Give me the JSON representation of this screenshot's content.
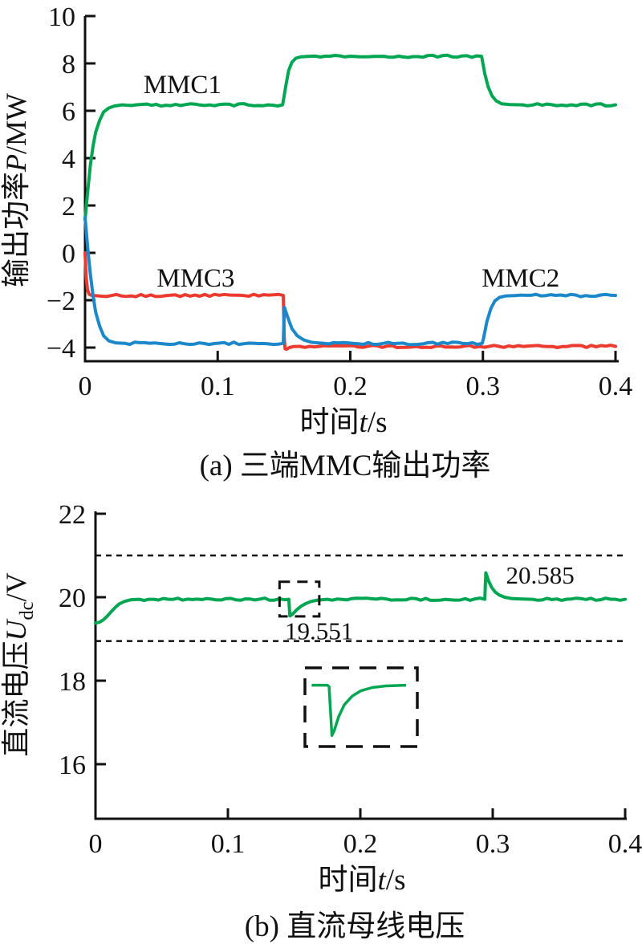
{
  "figure": {
    "background": "#ffffff",
    "text_color": "#111111"
  },
  "chart_data": [
    {
      "type": "line",
      "caption": "(a) 三端MMC输出功率",
      "xlabel_parts": [
        {
          "text": "时间"
        },
        {
          "text": "t",
          "italic": true
        },
        {
          "text": "/s"
        }
      ],
      "ylabel_parts": [
        {
          "text": "输出功率"
        },
        {
          "text": "P",
          "italic": true
        },
        {
          "text": "/MW"
        }
      ],
      "xlim": [
        0,
        0.4
      ],
      "ylim": [
        -4,
        10
      ],
      "grid": false,
      "x_ticks": [
        {
          "v": 0,
          "label": "0"
        },
        {
          "v": 0.1,
          "label": "0.1"
        },
        {
          "v": 0.2,
          "label": "0.2"
        },
        {
          "v": 0.3,
          "label": "0.3"
        },
        {
          "v": 0.4,
          "label": "0.4"
        }
      ],
      "y_ticks": [
        {
          "v": 10,
          "label": "10"
        },
        {
          "v": 8,
          "label": "8"
        },
        {
          "v": 6,
          "label": "6"
        },
        {
          "v": 4,
          "label": "4"
        },
        {
          "v": 2,
          "label": "2"
        },
        {
          "v": 0,
          "label": "0"
        },
        {
          "v": -2,
          "label": "−2"
        },
        {
          "v": -4,
          "label": "−4"
        }
      ],
      "series": [
        {
          "name": "MMC1",
          "color": "#00a651",
          "points": [
            [
              0,
              1.4
            ],
            [
              0.002,
              2.6
            ],
            [
              0.004,
              3.7
            ],
            [
              0.006,
              4.5
            ],
            [
              0.008,
              5.1
            ],
            [
              0.011,
              5.6
            ],
            [
              0.014,
              5.95
            ],
            [
              0.018,
              6.12
            ],
            [
              0.022,
              6.2
            ],
            [
              0.028,
              6.25
            ],
            [
              0.149,
              6.25
            ],
            [
              0.1515,
              7.1
            ],
            [
              0.1535,
              7.7
            ],
            [
              0.156,
              8.05
            ],
            [
              0.159,
              8.22
            ],
            [
              0.163,
              8.28
            ],
            [
              0.17,
              8.3
            ],
            [
              0.299,
              8.3
            ],
            [
              0.3015,
              7.55
            ],
            [
              0.304,
              7.0
            ],
            [
              0.307,
              6.62
            ],
            [
              0.31,
              6.42
            ],
            [
              0.314,
              6.3
            ],
            [
              0.32,
              6.26
            ],
            [
              0.33,
              6.25
            ],
            [
              0.4,
              6.25
            ]
          ]
        },
        {
          "name": "MMC3",
          "color": "#ec3a2f",
          "points": [
            [
              0,
              0
            ],
            [
              0.0008,
              -1.0
            ],
            [
              0.0018,
              -1.55
            ],
            [
              0.003,
              -1.75
            ],
            [
              0.005,
              -1.8
            ],
            [
              0.1495,
              -1.8
            ],
            [
              0.1502,
              -3.6
            ],
            [
              0.1508,
              -4.05
            ],
            [
              0.152,
              -4.07
            ],
            [
              0.154,
              -4.0
            ],
            [
              0.157,
              -3.96
            ],
            [
              0.162,
              -3.95
            ],
            [
              0.4,
              -3.95
            ]
          ]
        },
        {
          "name": "MMC2",
          "color": "#1c87c9",
          "points": [
            [
              0,
              1.5
            ],
            [
              0.002,
              0.2
            ],
            [
              0.004,
              -0.9
            ],
            [
              0.006,
              -1.8
            ],
            [
              0.008,
              -2.5
            ],
            [
              0.011,
              -3.1
            ],
            [
              0.014,
              -3.5
            ],
            [
              0.018,
              -3.72
            ],
            [
              0.023,
              -3.8
            ],
            [
              0.03,
              -3.82
            ],
            [
              0.1495,
              -3.82
            ],
            [
              0.1503,
              -2.3
            ],
            [
              0.153,
              -2.75
            ],
            [
              0.156,
              -3.2
            ],
            [
              0.16,
              -3.5
            ],
            [
              0.165,
              -3.68
            ],
            [
              0.171,
              -3.78
            ],
            [
              0.18,
              -3.82
            ],
            [
              0.2995,
              -3.82
            ],
            [
              0.3005,
              -3.6
            ],
            [
              0.303,
              -2.9
            ],
            [
              0.306,
              -2.35
            ],
            [
              0.309,
              -2.03
            ],
            [
              0.3125,
              -1.88
            ],
            [
              0.317,
              -1.82
            ],
            [
              0.325,
              -1.8
            ],
            [
              0.4,
              -1.8
            ]
          ]
        }
      ],
      "series_labels": [
        {
          "text": "MMC1",
          "t": 0.044,
          "v": 6.75
        },
        {
          "text": "MMC3",
          "t": 0.054,
          "v": -1.43
        },
        {
          "text": "MMC2",
          "t": 0.299,
          "v": -1.43
        }
      ]
    },
    {
      "type": "line",
      "caption": "(b) 直流母线电压",
      "xlabel_parts": [
        {
          "text": "时间"
        },
        {
          "text": "t",
          "italic": true
        },
        {
          "text": "/s"
        }
      ],
      "ylabel_parts": [
        {
          "text": "直流电压"
        },
        {
          "text": "U",
          "italic": true
        },
        {
          "text": "dc",
          "sub": true
        },
        {
          "text": "/V"
        }
      ],
      "xlim": [
        0,
        0.4
      ],
      "ylim": [
        16,
        22
      ],
      "grid": false,
      "x_ticks": [
        {
          "v": 0,
          "label": "0"
        },
        {
          "v": 0.1,
          "label": "0.1"
        },
        {
          "v": 0.2,
          "label": "0.2"
        },
        {
          "v": 0.3,
          "label": "0.3"
        },
        {
          "v": 0.4,
          "label": "0.4"
        }
      ],
      "y_ticks": [
        {
          "v": 22,
          "label": "22"
        },
        {
          "v": 20,
          "label": "20"
        },
        {
          "v": 18,
          "label": "18"
        },
        {
          "v": 16,
          "label": "16"
        }
      ],
      "dashed_hlines": [
        21.0,
        18.95
      ],
      "series": [
        {
          "name": "Udc",
          "color": "#00a651",
          "points": [
            [
              0,
              19.38
            ],
            [
              0.003,
              19.4
            ],
            [
              0.006,
              19.46
            ],
            [
              0.009,
              19.55
            ],
            [
              0.012,
              19.66
            ],
            [
              0.015,
              19.76
            ],
            [
              0.018,
              19.84
            ],
            [
              0.022,
              19.9
            ],
            [
              0.027,
              19.94
            ],
            [
              0.033,
              19.95
            ],
            [
              0.146,
              19.95
            ],
            [
              0.1468,
              19.551
            ],
            [
              0.149,
              19.6
            ],
            [
              0.152,
              19.7
            ],
            [
              0.1555,
              19.79
            ],
            [
              0.159,
              19.85
            ],
            [
              0.163,
              19.9
            ],
            [
              0.168,
              19.93
            ],
            [
              0.175,
              19.95
            ],
            [
              0.294,
              19.95
            ],
            [
              0.2948,
              20.585
            ],
            [
              0.297,
              20.38
            ],
            [
              0.2995,
              20.22
            ],
            [
              0.302,
              20.12
            ],
            [
              0.305,
              20.05
            ],
            [
              0.309,
              20.0
            ],
            [
              0.314,
              19.97
            ],
            [
              0.32,
              19.96
            ],
            [
              0.33,
              19.95
            ],
            [
              0.4,
              19.95
            ]
          ]
        }
      ],
      "annotations": [
        {
          "text": "19.551",
          "t": 0.143,
          "v": 18.99
        },
        {
          "text": "20.585",
          "t": 0.31,
          "v": 20.33
        }
      ],
      "callout_rect": {
        "t0": 0.139,
        "t1": 0.169,
        "v0": 19.54,
        "v1": 20.37
      },
      "inset": {
        "description": "magnified-dip",
        "curve_norm": [
          [
            0.06,
            0.22
          ],
          [
            0.2,
            0.22
          ],
          [
            0.215,
            0.24
          ],
          [
            0.24,
            0.86
          ],
          [
            0.26,
            0.8
          ],
          [
            0.3,
            0.62
          ],
          [
            0.35,
            0.47
          ],
          [
            0.42,
            0.36
          ],
          [
            0.5,
            0.29
          ],
          [
            0.6,
            0.25
          ],
          [
            0.72,
            0.23
          ],
          [
            0.9,
            0.22
          ]
        ]
      }
    }
  ]
}
